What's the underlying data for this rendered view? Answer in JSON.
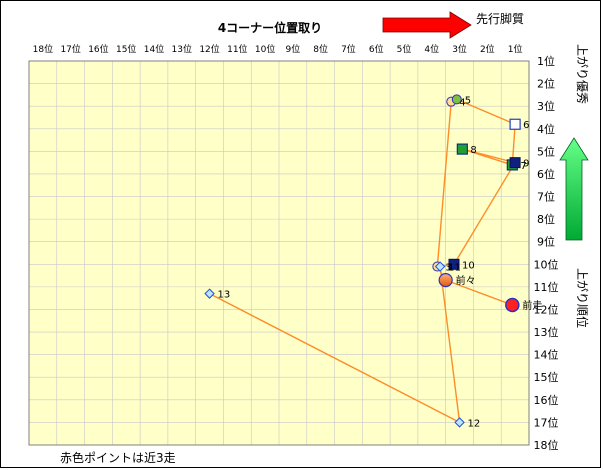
{
  "chart_data": {
    "type": "scatter",
    "title": "4コーナー位置取り",
    "x_arrow_label": "先行脚質",
    "y_arrow_label": "上がり優秀",
    "y_side_label": "上がり順位",
    "footnote": "赤色ポイントは近3走",
    "x_ticks": [
      "18位",
      "17位",
      "16位",
      "15位",
      "14位",
      "13位",
      "12位",
      "11位",
      "10位",
      "9位",
      "8位",
      "7位",
      "6位",
      "5位",
      "4位",
      "3位",
      "2位",
      "1位"
    ],
    "y_ticks": [
      "1位",
      "2位",
      "3位",
      "4位",
      "5位",
      "6位",
      "7位",
      "8位",
      "9位",
      "10位",
      "11位",
      "12位",
      "13位",
      "14位",
      "15位",
      "16位",
      "17位",
      "18位"
    ],
    "xlim": [
      18,
      1
    ],
    "ylim": [
      1,
      18
    ],
    "colors": {
      "plot_bg": "#ffffc8",
      "grid": "#c8c8c8",
      "line": "#ff8c28",
      "arrow_red": "#ff0000",
      "arrow_green": "#00cc44",
      "highlight": "#ff2020",
      "recent": "#ff7030"
    },
    "points": [
      {
        "label": "前走",
        "x": 1.1,
        "y": 11.8,
        "marker": "circle-red",
        "size": "large"
      },
      {
        "label": "前々",
        "x": 3.5,
        "y": 10.7,
        "marker": "circle-orange",
        "size": "large"
      },
      {
        "label": "3",
        "x": 3.8,
        "y": 10.1,
        "marker": "circle-small"
      },
      {
        "label": "4",
        "x": 3.3,
        "y": 2.8,
        "marker": "circle-small"
      },
      {
        "label": "5",
        "x": 3.1,
        "y": 2.7,
        "marker": "circle-green"
      },
      {
        "label": "6",
        "x": 1.0,
        "y": 3.8,
        "marker": "square-white"
      },
      {
        "label": "7",
        "x": 1.1,
        "y": 5.6,
        "marker": "square-green"
      },
      {
        "label": "8",
        "x": 2.9,
        "y": 4.9,
        "marker": "square-green"
      },
      {
        "label": "9",
        "x": 1.0,
        "y": 5.5,
        "marker": "square-navy"
      },
      {
        "label": "10",
        "x": 3.2,
        "y": 10.0,
        "marker": "square-navy"
      },
      {
        "label": "11",
        "x": 3.7,
        "y": 10.1,
        "marker": "diamond"
      },
      {
        "label": "12",
        "x": 3.0,
        "y": 17.0,
        "marker": "diamond"
      },
      {
        "label": "13",
        "x": 12.0,
        "y": 11.3,
        "marker": "diamond"
      }
    ],
    "path_order": [
      "前走",
      "前々",
      "3",
      "4",
      "5",
      "6",
      "7",
      "8",
      "9",
      "10",
      "11",
      "12",
      "13"
    ]
  }
}
